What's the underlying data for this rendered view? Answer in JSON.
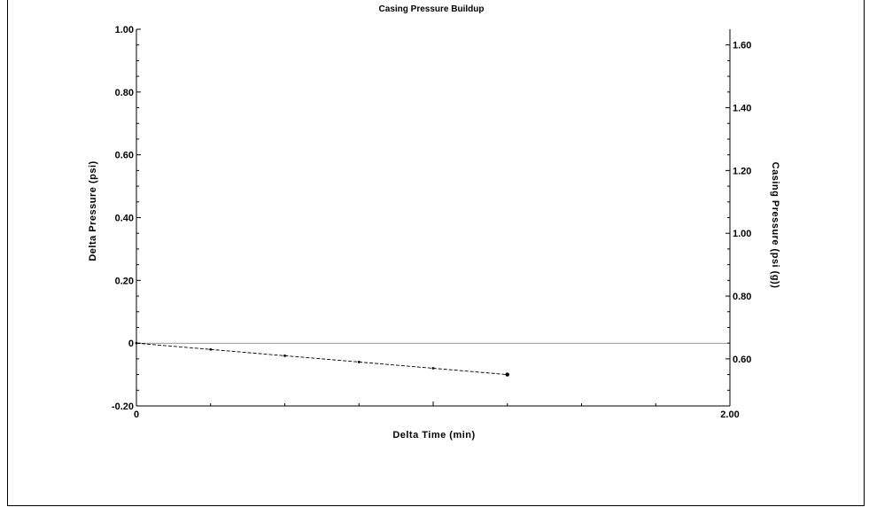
{
  "chart_data": {
    "type": "line",
    "title": "Casing Pressure Buildup",
    "xlabel": "Delta Time (min)",
    "ylabel": "Delta Pressure (psi)",
    "y2label": "Casing Pressure (psi (g))",
    "xlim": [
      0,
      2.0
    ],
    "ylim": [
      -0.2,
      1.0
    ],
    "y2lim": [
      0.45,
      1.65
    ],
    "x_ticks": [
      0,
      1.0,
      2.0
    ],
    "x_tick_labels": [
      "0",
      "",
      "2.00"
    ],
    "y_ticks": [
      -0.2,
      0,
      0.2,
      0.4,
      0.6,
      0.8,
      1.0
    ],
    "y_tick_labels": [
      "-0.20",
      "0",
      "0.20",
      "0.40",
      "0.60",
      "0.80",
      "1.00"
    ],
    "y2_ticks": [
      0.6,
      0.8,
      1.0,
      1.2,
      1.4,
      1.6
    ],
    "y2_tick_labels": [
      "0.60",
      "0.80",
      "1.00",
      "1.20",
      "1.40",
      "1.60"
    ],
    "reference_line_y": 0,
    "grid": false,
    "series": [
      {
        "x": [
          0,
          0.25,
          0.5,
          0.75,
          1.0,
          1.25
        ],
        "y": [
          0,
          -0.02,
          -0.04,
          -0.06,
          -0.08,
          -0.1
        ],
        "color": "#000000",
        "line_style": "dashed"
      }
    ]
  }
}
